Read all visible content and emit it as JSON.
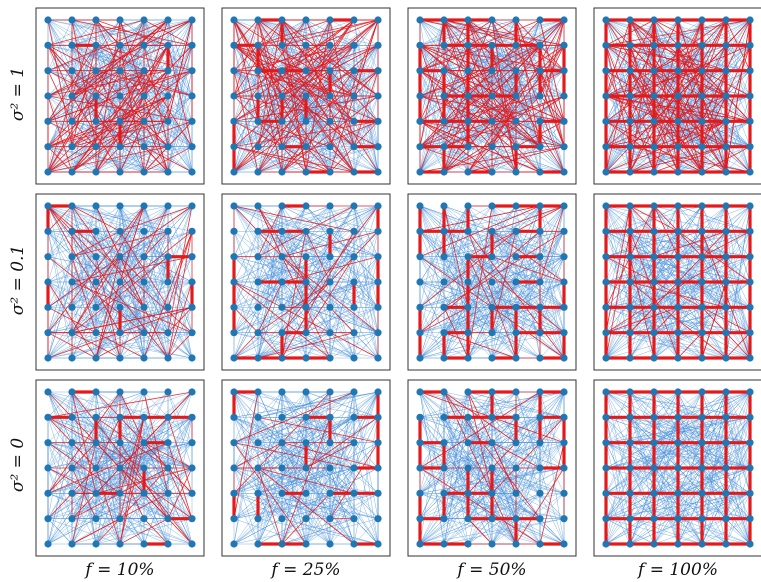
{
  "figure": {
    "row_labels": [
      "σ² = 1",
      "σ² = 0.1",
      "σ² = 0"
    ],
    "col_labels": [
      "f = 10%",
      "f = 25%",
      "f = 50%",
      "f = 100%"
    ],
    "grid_size": 7,
    "colors": {
      "node": "#1f77b4",
      "edge": "#4a90d9",
      "lattice_edge": "#e31a1c",
      "frame": "#333333"
    }
  },
  "chart_data": {
    "type": "network-grid",
    "rows": [
      {
        "sigma2": 1,
        "label": "σ² = 1"
      },
      {
        "sigma2": 0.1,
        "label": "σ² = 0.1"
      },
      {
        "sigma2": 0,
        "label": "σ² = 0"
      }
    ],
    "columns": [
      {
        "f_percent": 10,
        "label": "f = 10%"
      },
      {
        "f_percent": 25,
        "label": "f = 25%"
      },
      {
        "f_percent": 50,
        "label": "f = 50%"
      },
      {
        "f_percent": 100,
        "label": "f = 100%"
      }
    ],
    "nodes_per_panel": 49
  }
}
